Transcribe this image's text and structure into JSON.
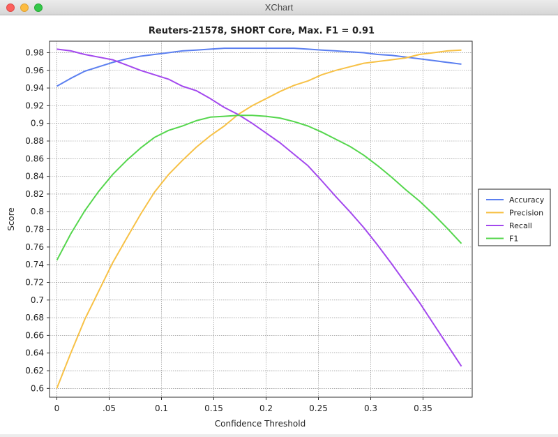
{
  "window": {
    "title": "XChart"
  },
  "chart_data": {
    "type": "line",
    "title": "Reuters-21578, SHORT Core, Max. F1 = 0.91",
    "xlabel": "Confidence Threshold",
    "ylabel": "Score",
    "xlim": [
      -0.007,
      0.397
    ],
    "ylim": [
      0.59,
      0.993
    ],
    "xticks": [
      0,
      0.05,
      0.1,
      0.15,
      0.2,
      0.25,
      0.3,
      0.35
    ],
    "xtick_labels": [
      "0",
      ".05",
      "0.1",
      "0.15",
      "0.2",
      "0.25",
      "0.3",
      "0.35"
    ],
    "yticks": [
      0.6,
      0.62,
      0.64,
      0.66,
      0.68,
      0.7,
      0.72,
      0.74,
      0.76,
      0.78,
      0.8,
      0.82,
      0.84,
      0.86,
      0.88,
      0.9,
      0.92,
      0.94,
      0.96,
      0.98
    ],
    "ytick_labels": [
      "0.6",
      "0.62",
      "0.64",
      "0.66",
      "0.68",
      "0.7",
      "0.72",
      "0.74",
      "0.76",
      "0.78",
      "0.8",
      "0.82",
      "0.84",
      "0.86",
      "0.88",
      "0.9",
      "0.92",
      "0.94",
      "0.96",
      "0.98"
    ],
    "grid": true,
    "legend_position": "outside-right",
    "x": [
      0,
      0.0133,
      0.0267,
      0.04,
      0.0533,
      0.0667,
      0.08,
      0.0933,
      0.1067,
      0.12,
      0.1333,
      0.1467,
      0.16,
      0.1733,
      0.1867,
      0.2,
      0.2133,
      0.2267,
      0.24,
      0.2533,
      0.2667,
      0.28,
      0.2933,
      0.3067,
      0.32,
      0.3333,
      0.3467,
      0.36,
      0.3733,
      0.3867
    ],
    "series": [
      {
        "name": "Accuracy",
        "color": "#5b7ff0",
        "values": [
          0.942,
          0.951,
          0.959,
          0.964,
          0.969,
          0.973,
          0.976,
          0.978,
          0.98,
          0.982,
          0.983,
          0.984,
          0.985,
          0.985,
          0.985,
          0.985,
          0.985,
          0.985,
          0.984,
          0.983,
          0.982,
          0.981,
          0.98,
          0.978,
          0.977,
          0.975,
          0.973,
          0.971,
          0.969,
          0.967
        ]
      },
      {
        "name": "Precision",
        "color": "#f7c146",
        "values": [
          0.6,
          0.64,
          0.678,
          0.71,
          0.742,
          0.77,
          0.797,
          0.822,
          0.842,
          0.858,
          0.873,
          0.886,
          0.897,
          0.91,
          0.92,
          0.928,
          0.936,
          0.943,
          0.948,
          0.955,
          0.96,
          0.964,
          0.968,
          0.97,
          0.972,
          0.974,
          0.978,
          0.98,
          0.982,
          0.983
        ]
      },
      {
        "name": "Recall",
        "color": "#a348ee",
        "values": [
          0.984,
          0.982,
          0.978,
          0.975,
          0.972,
          0.966,
          0.96,
          0.955,
          0.95,
          0.942,
          0.937,
          0.928,
          0.918,
          0.91,
          0.9,
          0.889,
          0.878,
          0.865,
          0.852,
          0.835,
          0.817,
          0.8,
          0.782,
          0.762,
          0.741,
          0.719,
          0.697,
          0.673,
          0.649,
          0.625
        ]
      },
      {
        "name": "F1",
        "color": "#55d64d",
        "values": [
          0.745,
          0.775,
          0.801,
          0.823,
          0.842,
          0.858,
          0.872,
          0.884,
          0.892,
          0.897,
          0.903,
          0.907,
          0.908,
          0.909,
          0.909,
          0.908,
          0.906,
          0.902,
          0.897,
          0.89,
          0.882,
          0.874,
          0.864,
          0.852,
          0.839,
          0.825,
          0.812,
          0.797,
          0.781,
          0.764
        ]
      }
    ]
  }
}
